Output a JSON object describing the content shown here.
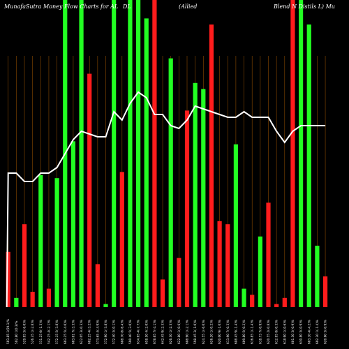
{
  "chart_data": {
    "type": "bar",
    "title_parts": [
      "MunafaSutra  Money Flow  Charts for AL",
      "DL",
      "(Allied",
      "Blend N  Distils L) Mu"
    ],
    "line_color": "#ffffff",
    "gridline_color": "#8b4a00",
    "colors": {
      "up": "#22ff22",
      "down": "#ff1c1c",
      "background": "#000000"
    },
    "categories": [
      "503.85 1(59.1)%",
      "502.80 1(0.3)%",
      "529.95 5(-6.0)%",
      "526.35 1(-2.8)%",
      "531.25 0(-1.3)%",
      "542.25 4(-2.1)%",
      "572.15 5(-3.8)%",
      "603.25 5(-4.0)%",
      "603.01 7(-3.5)%",
      "622.05 3(-0.3)%",
      "602.25 4(-3.2)%",
      "573.65 4(-4.9)%",
      "572.90 1(-3.8)%",
      "572.40 3(-0.1)%",
      "608.70 8(-6.4)%",
      "590.40 5(-3.0)%",
      "634.65 4(-7.7)%",
      "658.50 4(-2.0)%",
      "678.65 7(-4.1)%",
      "642.45 9(-2.5)%",
      "626.30 1(-2.3)%",
      "622.80 1(-0.6)%",
      "608.90 1(-2.1)%",
      "598.45 3(-1.0)%",
      "624.55 1(-6.0)%",
      "626.20 1(-0.2)%",
      "620.00 9(-1.0)%",
      "613.90 7(-0.3)%",
      "608.45 9(-1.4)%",
      "609.80 5(-0.2)%",
      "616.85 1(-1.4)%",
      "618.73 7(-0.9)%",
      "620.55 2(-0.8)%",
      "612.95 8(-0.3)%",
      "618.90 1(-0.6)%",
      "601.30 3(-0.9)%",
      "630.80 3(-0.9)%",
      "603.10 4(-4.2)%",
      "602.30 1(-1.4)%",
      "620.60 3(-0.9)%"
    ],
    "bar_color_series": [
      "down",
      "up",
      "down",
      "down",
      "up",
      "down",
      "up",
      "up",
      "up",
      "up",
      "down",
      "down",
      "up",
      "up",
      "down",
      "up",
      "up",
      "up",
      "down",
      "down",
      "up",
      "down",
      "down",
      "up",
      "up",
      "down",
      "down",
      "down",
      "up",
      "up",
      "down",
      "up",
      "down",
      "down",
      "down",
      "down",
      "up",
      "up",
      "up",
      "down"
    ],
    "bar_values": [
      0.18,
      0.03,
      0.27,
      0.05,
      0.43,
      0.06,
      0.42,
      1.0,
      0.54,
      1.0,
      0.76,
      0.14,
      0.01,
      1.0,
      0.44,
      1.0,
      1.0,
      0.94,
      1.0,
      0.09,
      0.81,
      0.16,
      0.64,
      0.73,
      0.71,
      0.92,
      0.28,
      0.27,
      0.53,
      0.06,
      0.04,
      0.23,
      0.34,
      0.01,
      0.03,
      1.0,
      1.0,
      0.92,
      0.2,
      0.1
    ],
    "line_values": [
      0.48,
      0.48,
      0.45,
      0.45,
      0.48,
      0.48,
      0.5,
      0.55,
      0.6,
      0.63,
      0.62,
      0.61,
      0.61,
      0.7,
      0.67,
      0.73,
      0.77,
      0.75,
      0.69,
      0.69,
      0.65,
      0.64,
      0.67,
      0.72,
      0.71,
      0.7,
      0.69,
      0.68,
      0.68,
      0.7,
      0.68,
      0.68,
      0.68,
      0.63,
      0.59,
      0.63,
      0.65,
      0.65,
      0.65,
      0.65
    ],
    "gridlines_at_every_bar": true
  }
}
